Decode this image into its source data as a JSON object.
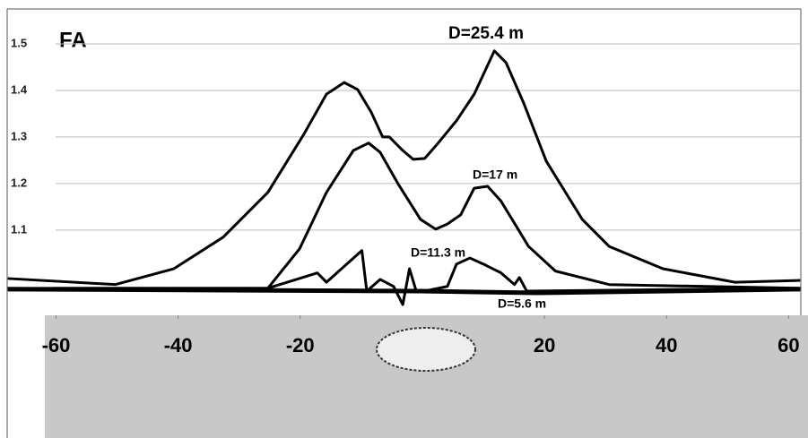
{
  "chart_data": {
    "type": "line",
    "title": "FA",
    "xlim": [
      -68,
      62
    ],
    "xticks": [
      -60,
      -40,
      -20,
      20,
      40,
      60
    ],
    "ylim": [
      0.917,
      1.575
    ],
    "yticks": [
      1.1,
      1.2,
      1.3,
      1.4,
      1.5
    ],
    "grid": true,
    "series": [
      {
        "name": "D=25.4 m",
        "color": "#000000",
        "x": [
          -67.9,
          -50.3,
          -40.7,
          -32.6,
          -25.3,
          -19.4,
          -15.7,
          -12.8,
          -10.6,
          -8.4,
          -6.5,
          -5.4,
          -3.2,
          -1.5,
          0.4,
          2.6,
          5.6,
          8.5,
          11.8,
          13.7,
          16.6,
          20.3,
          26.2,
          30.6,
          39.4,
          51.2,
          61.9
        ],
        "values": [
          0.996,
          0.983,
          1.017,
          1.085,
          1.181,
          1.306,
          1.392,
          1.417,
          1.402,
          1.354,
          1.3,
          1.3,
          1.271,
          1.252,
          1.254,
          1.287,
          1.335,
          1.392,
          1.485,
          1.46,
          1.373,
          1.248,
          1.123,
          1.065,
          1.017,
          0.988,
          0.992
        ]
      },
      {
        "name": "D=17 m",
        "color": "#000000",
        "x": [
          -60.6,
          -25.3,
          -20.1,
          -15.7,
          -11.3,
          -8.8,
          -6.9,
          -4.0,
          -0.3,
          2.2,
          4.1,
          6.3,
          8.5,
          10.7,
          12.9,
          17.4,
          21.8,
          30.6,
          61.9
        ],
        "values": [
          0.975,
          0.975,
          1.06,
          1.181,
          1.271,
          1.287,
          1.267,
          1.2,
          1.123,
          1.102,
          1.113,
          1.133,
          1.19,
          1.194,
          1.162,
          1.065,
          1.012,
          0.983,
          0.975
        ]
      },
      {
        "name": "D=11.3 m",
        "color": "#000000",
        "x": [
          -67.9,
          -25.3,
          -17.2,
          -15.7,
          -9.9,
          -9.1,
          -6.9,
          -4.7,
          -3.2,
          -2.1,
          -1.0,
          0.4,
          4.1,
          5.6,
          7.8,
          10.0,
          12.9,
          15.1,
          15.9,
          17.1,
          61.9
        ],
        "values": [
          0.975,
          0.975,
          1.008,
          0.988,
          1.056,
          0.969,
          0.994,
          0.979,
          0.94,
          1.017,
          0.969,
          0.969,
          0.979,
          1.027,
          1.04,
          1.027,
          1.008,
          0.983,
          0.998,
          0.969,
          0.975
        ]
      },
      {
        "name": "D=5.6 m",
        "color": "#000000",
        "x": [
          -67.9,
          -0.3,
          18.8,
          61.9
        ],
        "values": [
          0.973,
          0.969,
          0.965,
          0.973
        ]
      }
    ]
  }
}
